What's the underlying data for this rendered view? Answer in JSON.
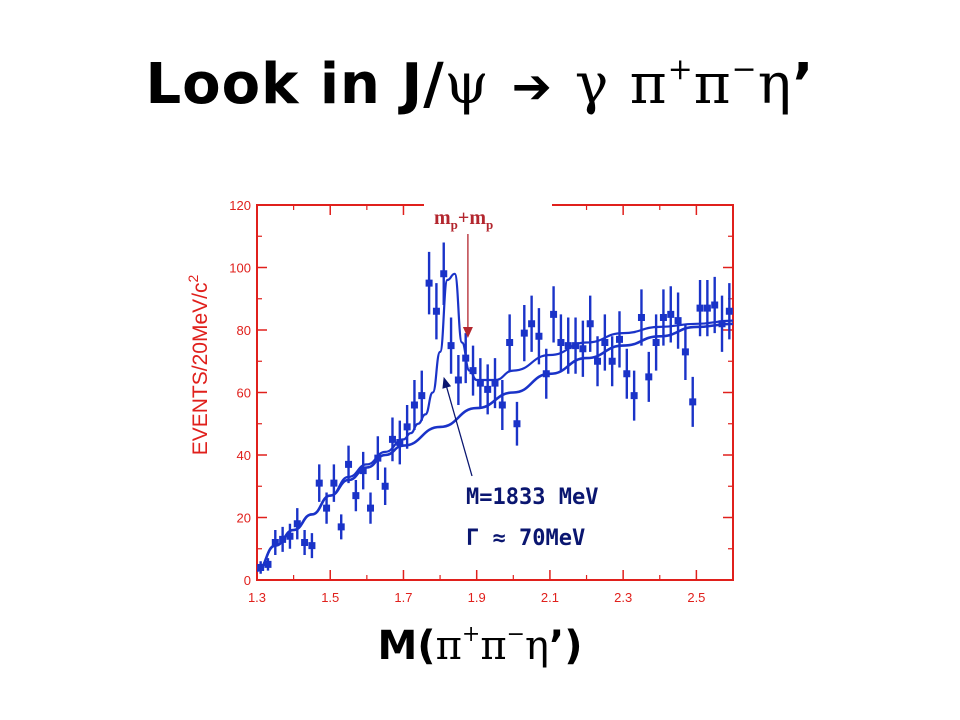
{
  "title": {
    "prefix": "Look in J/",
    "psi": "ψ",
    "arrow": "➔",
    "gamma": "γ",
    "pi": "π",
    "plus": "+",
    "minus": "−",
    "eta": "η",
    "prime": "’"
  },
  "xaxis_title": {
    "prefix": "M(",
    "pi": "π",
    "plus": "+",
    "minus": "−",
    "eta": "η",
    "suffix": "’)"
  },
  "chart_data": {
    "type": "scatter",
    "ylabel": "EVENTS/20MeV/c",
    "ylabel_sup": "2",
    "xlim": [
      1.3,
      2.6
    ],
    "ylim": [
      0,
      120
    ],
    "xticks": [
      "1.3",
      "1.5",
      "1.7",
      "1.9",
      "2.1",
      "2.3",
      "2.5"
    ],
    "yticks": [
      "0",
      "20",
      "40",
      "60",
      "80",
      "100",
      "120"
    ],
    "threshold_label": "m",
    "threshold_sub": "p",
    "threshold_plus": "+",
    "threshold_x": 1.876,
    "resonance_mass_label": "M=1833 MeV",
    "resonance_width_label": "Γ ≈ 70MeV",
    "annotation_arrow_tip": [
      1.81,
      65
    ],
    "series": [
      {
        "type": "points",
        "x": [
          1.31,
          1.33,
          1.35,
          1.37,
          1.39,
          1.41,
          1.43,
          1.45,
          1.47,
          1.49,
          1.51,
          1.53,
          1.55,
          1.57,
          1.59,
          1.61,
          1.63,
          1.65,
          1.67,
          1.69,
          1.71,
          1.73,
          1.75,
          1.77,
          1.79,
          1.81,
          1.83,
          1.85,
          1.87,
          1.89,
          1.91,
          1.93,
          1.95,
          1.97,
          1.99,
          2.01,
          2.03,
          2.05,
          2.07,
          2.09,
          2.11,
          2.13,
          2.15,
          2.17,
          2.19,
          2.21,
          2.23,
          2.25,
          2.27,
          2.29,
          2.31,
          2.33,
          2.35,
          2.37,
          2.39,
          2.41,
          2.43,
          2.45,
          2.47,
          2.49,
          2.51,
          2.53,
          2.55,
          2.57,
          2.59
        ],
        "y": [
          4,
          5,
          12,
          13,
          14,
          18,
          12,
          11,
          31,
          23,
          31,
          17,
          37,
          27,
          35,
          23,
          39,
          30,
          45,
          44,
          49,
          56,
          59,
          95,
          86,
          98,
          75,
          64,
          71,
          67,
          63,
          61,
          63,
          56,
          76,
          50,
          79,
          82,
          78,
          66,
          85,
          76,
          75,
          75,
          74,
          82,
          70,
          76,
          70,
          77,
          66,
          59,
          84,
          65,
          76,
          84,
          85,
          83,
          73,
          57,
          87,
          87,
          88,
          82,
          86
        ],
        "err": [
          2,
          2,
          4,
          4,
          4,
          5,
          4,
          4,
          6,
          5,
          6,
          4,
          6,
          5,
          6,
          5,
          7,
          6,
          7,
          7,
          7,
          8,
          8,
          10,
          9,
          10,
          9,
          8,
          8,
          8,
          8,
          8,
          8,
          8,
          9,
          7,
          9,
          9,
          9,
          8,
          9,
          9,
          9,
          9,
          9,
          9,
          8,
          9,
          8,
          9,
          8,
          8,
          9,
          8,
          9,
          9,
          9,
          9,
          9,
          8,
          9,
          9,
          9,
          9,
          9
        ]
      },
      {
        "type": "line",
        "name": "fit",
        "x": [
          1.3,
          1.35,
          1.4,
          1.45,
          1.5,
          1.55,
          1.6,
          1.65,
          1.7,
          1.72,
          1.74,
          1.76,
          1.78,
          1.8,
          1.82,
          1.84,
          1.86,
          1.88,
          1.9,
          1.95,
          2.0,
          2.1,
          2.2,
          2.3,
          2.4,
          2.5,
          2.6
        ],
        "y": [
          3,
          11,
          16,
          21,
          27,
          33,
          37,
          41,
          45,
          47,
          50,
          53,
          60,
          73,
          96,
          98,
          76,
          67,
          64,
          64,
          67,
          72,
          76,
          79,
          81,
          82,
          83
        ]
      },
      {
        "type": "line",
        "name": "background",
        "x": [
          1.3,
          1.35,
          1.4,
          1.45,
          1.5,
          1.55,
          1.6,
          1.65,
          1.7,
          1.8,
          1.9,
          2.0,
          2.1,
          2.2,
          2.3,
          2.4,
          2.5,
          2.6
        ],
        "y": [
          3,
          11,
          16,
          21,
          27,
          32,
          36,
          40,
          43,
          49,
          55,
          60,
          66,
          71,
          75,
          78,
          81,
          82
        ]
      }
    ]
  }
}
